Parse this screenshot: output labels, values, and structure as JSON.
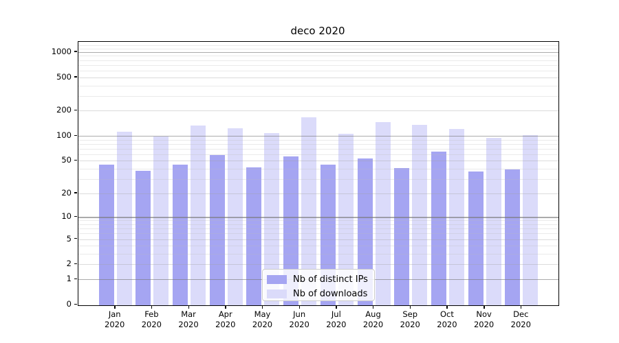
{
  "chart_data": {
    "type": "bar",
    "title": "deco 2020",
    "categories": [
      "Jan",
      "Feb",
      "Mar",
      "Apr",
      "May",
      "Jun",
      "Jul",
      "Aug",
      "Sep",
      "Oct",
      "Nov",
      "Dec"
    ],
    "category_year": "2020",
    "series": [
      {
        "name": "Nb of distinct IPs",
        "color": "#a5a5f2",
        "values": [
          45,
          38,
          45,
          59,
          42,
          57,
          45,
          53,
          41,
          65,
          37,
          39
        ]
      },
      {
        "name": "Nb of downloads",
        "color": "#dbdbfa",
        "values": [
          113,
          99,
          132,
          123,
          108,
          166,
          107,
          145,
          136,
          120,
          94,
          102
        ]
      }
    ],
    "yticks": [
      0,
      1,
      2,
      5,
      10,
      20,
      50,
      100,
      200,
      500,
      1000
    ],
    "emphasized_gridlines": [
      1,
      10,
      100,
      1000
    ],
    "yscale": "log1p",
    "ylim": [
      0,
      1315
    ],
    "xlabel": "",
    "ylabel": "",
    "grid": true,
    "legend_position": "lower center"
  }
}
